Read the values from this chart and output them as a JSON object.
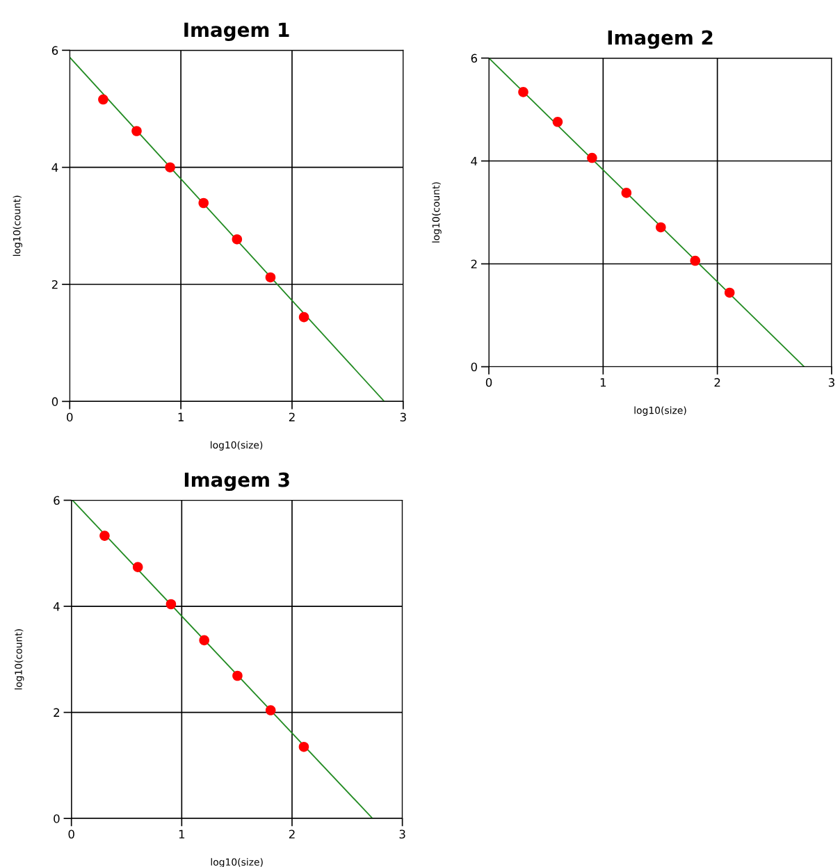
{
  "chart_data": [
    {
      "type": "scatter",
      "title": "Imagem 1",
      "xlabel": "log10(size)",
      "ylabel": "log10(count)",
      "xlim": [
        0,
        3
      ],
      "ylim": [
        0,
        6
      ],
      "xticks": [
        0,
        1,
        2,
        3
      ],
      "yticks": [
        0,
        2,
        4,
        6
      ],
      "grid": true,
      "series": [
        {
          "color": "#ff0000",
          "marker": "circle",
          "x": [
            0.301,
            0.602,
            0.903,
            1.204,
            1.505,
            1.806,
            2.107
          ],
          "values": [
            5.16,
            4.62,
            4.0,
            3.39,
            2.77,
            2.12,
            1.44
          ]
        },
        {
          "type": "line",
          "color": "#228b22",
          "x": [
            0,
            2.83
          ],
          "values": [
            5.88,
            0
          ]
        }
      ]
    },
    {
      "type": "scatter",
      "title": "Imagem 2",
      "xlabel": "log10(size)",
      "ylabel": "log10(count)",
      "xlim": [
        0,
        3
      ],
      "ylim": [
        0,
        6
      ],
      "xticks": [
        0,
        1,
        2,
        3
      ],
      "yticks": [
        0,
        2,
        4,
        6
      ],
      "grid": true,
      "series": [
        {
          "color": "#ff0000",
          "marker": "circle",
          "x": [
            0.301,
            0.602,
            0.903,
            1.204,
            1.505,
            1.806,
            2.107
          ],
          "values": [
            5.34,
            4.76,
            4.06,
            3.38,
            2.71,
            2.06,
            1.44
          ]
        },
        {
          "type": "line",
          "color": "#228b22",
          "x": [
            0,
            2.76
          ],
          "values": [
            6,
            0
          ]
        }
      ]
    },
    {
      "type": "scatter",
      "title": "Imagem 3",
      "xlabel": "log10(size)",
      "ylabel": "log10(count)",
      "xlim": [
        0,
        3
      ],
      "ylim": [
        0,
        6
      ],
      "xticks": [
        0,
        1,
        2,
        3
      ],
      "yticks": [
        0,
        2,
        4,
        6
      ],
      "grid": true,
      "series": [
        {
          "color": "#ff0000",
          "marker": "circle",
          "x": [
            0.301,
            0.602,
            0.903,
            1.204,
            1.505,
            1.806,
            2.107
          ],
          "values": [
            5.33,
            4.74,
            4.04,
            3.36,
            2.69,
            2.04,
            1.35
          ]
        },
        {
          "type": "line",
          "color": "#228b22",
          "x": [
            0.01,
            2.73
          ],
          "values": [
            6,
            0
          ]
        }
      ]
    }
  ]
}
